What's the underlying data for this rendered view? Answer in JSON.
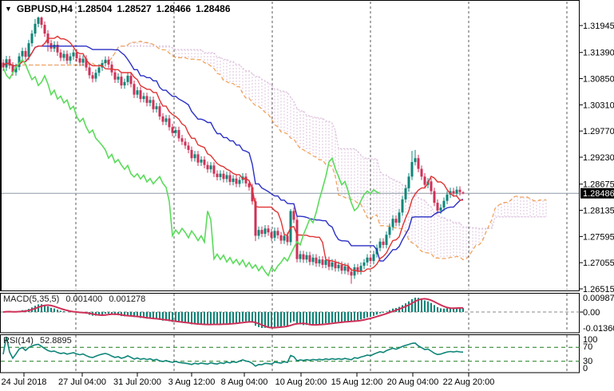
{
  "chart_data": {
    "type": "candlestick",
    "title": {
      "symbol": "GBPUSD,H4",
      "open": "1.28504",
      "high": "1.28527",
      "low": "1.28466",
      "close": "1.28486"
    },
    "price_axis": {
      "ticks": [
        "1.31945",
        "1.31390",
        "1.30850",
        "1.30310",
        "1.29770",
        "1.29230",
        "1.28675",
        "1.28135",
        "1.27595",
        "1.27055",
        "1.26515"
      ],
      "current_price": 1.28486,
      "current_price_label": "1.28486"
    },
    "time_axis": {
      "labels": [
        "24 Jul 2018",
        "27 Jul 04:00",
        "31 Jul 20:00",
        "3 Aug 12:00",
        "8 Aug 04:00",
        "10 Aug 20:00",
        "15 Aug 12:00",
        "20 Aug 04:00",
        "22 Aug 20:00"
      ]
    },
    "candles": [
      [
        1.3118,
        1.3125,
        1.3101,
        1.3108
      ],
      [
        1.3108,
        1.3132,
        1.3101,
        1.3125
      ],
      [
        1.3125,
        1.3132,
        1.3105,
        1.3112
      ],
      [
        1.3112,
        1.3119,
        1.3091,
        1.3098
      ],
      [
        1.3098,
        1.3116,
        1.3091,
        1.3109
      ],
      [
        1.3109,
        1.3138,
        1.3102,
        1.3131
      ],
      [
        1.3131,
        1.3149,
        1.3124,
        1.3142
      ],
      [
        1.3142,
        1.3149,
        1.3123,
        1.313
      ],
      [
        1.313,
        1.3165,
        1.3123,
        1.3158
      ],
      [
        1.3158,
        1.3185,
        1.3151,
        1.3178
      ],
      [
        1.3178,
        1.3208,
        1.3171,
        1.3198
      ],
      [
        1.3198,
        1.3213,
        1.3191,
        1.3211
      ],
      [
        1.3211,
        1.3213,
        1.3189,
        1.3196
      ],
      [
        1.3196,
        1.3203,
        1.3171,
        1.3178
      ],
      [
        1.3178,
        1.3185,
        1.3141,
        1.3158
      ],
      [
        1.3158,
        1.3165,
        1.314,
        1.3147
      ],
      [
        1.3147,
        1.3162,
        1.314,
        1.3155
      ],
      [
        1.3155,
        1.3162,
        1.3132,
        1.3139
      ],
      [
        1.3139,
        1.3146,
        1.3121,
        1.3128
      ],
      [
        1.3128,
        1.3143,
        1.3121,
        1.3136
      ],
      [
        1.3136,
        1.3143,
        1.3115,
        1.3122
      ],
      [
        1.3122,
        1.3138,
        1.3115,
        1.3131
      ],
      [
        1.3131,
        1.3146,
        1.3124,
        1.3139
      ],
      [
        1.3139,
        1.3146,
        1.312,
        1.3127
      ],
      [
        1.3127,
        1.3134,
        1.3111,
        1.3118
      ],
      [
        1.3118,
        1.3133,
        1.3111,
        1.3126
      ],
      [
        1.3126,
        1.3133,
        1.3101,
        1.3108
      ],
      [
        1.3108,
        1.3115,
        1.3085,
        1.3092
      ],
      [
        1.3092,
        1.3099,
        1.3077,
        1.3085
      ],
      [
        1.3085,
        1.3104,
        1.3078,
        1.3097
      ],
      [
        1.3097,
        1.3115,
        1.309,
        1.3108
      ],
      [
        1.3108,
        1.3124,
        1.3101,
        1.3117
      ],
      [
        1.3117,
        1.3131,
        1.311,
        1.3124
      ],
      [
        1.3124,
        1.3131,
        1.3107,
        1.3114
      ],
      [
        1.3114,
        1.3121,
        1.3091,
        1.3098
      ],
      [
        1.3098,
        1.3105,
        1.3076,
        1.3083
      ],
      [
        1.3083,
        1.3096,
        1.3076,
        1.3089
      ],
      [
        1.3089,
        1.3096,
        1.3064,
        1.3071
      ],
      [
        1.3071,
        1.3085,
        1.3064,
        1.3078
      ],
      [
        1.3078,
        1.3098,
        1.3071,
        1.3091
      ],
      [
        1.3091,
        1.3098,
        1.3067,
        1.3074
      ],
      [
        1.3074,
        1.3081,
        1.3045,
        1.3052
      ],
      [
        1.3052,
        1.3068,
        1.3045,
        1.3061
      ],
      [
        1.3061,
        1.3068,
        1.3036,
        1.3043
      ],
      [
        1.3043,
        1.3056,
        1.3036,
        1.3049
      ],
      [
        1.3049,
        1.3056,
        1.3028,
        1.3035
      ],
      [
        1.3035,
        1.3048,
        1.3028,
        1.3041
      ],
      [
        1.3041,
        1.3048,
        1.3015,
        1.3022
      ],
      [
        1.3022,
        1.3035,
        1.3015,
        1.3028
      ],
      [
        1.3028,
        1.3035,
        1.3,
        1.3007
      ],
      [
        1.3007,
        1.3014,
        1.2989,
        1.2996
      ],
      [
        1.2996,
        1.301,
        1.2989,
        1.3003
      ],
      [
        1.3003,
        1.301,
        1.2978,
        1.2985
      ],
      [
        1.2985,
        1.2992,
        1.2966,
        1.2973
      ],
      [
        1.2973,
        1.2986,
        1.2966,
        1.2979
      ],
      [
        1.2979,
        1.2986,
        1.2955,
        1.2962
      ],
      [
        1.2962,
        1.2969,
        1.2948,
        1.2955
      ],
      [
        1.2955,
        1.2962,
        1.294,
        1.2947
      ],
      [
        1.2947,
        1.2954,
        1.2931,
        1.2938
      ],
      [
        1.2938,
        1.2945,
        1.2914,
        1.2921
      ],
      [
        1.2921,
        1.2936,
        1.2914,
        1.2929
      ],
      [
        1.2929,
        1.2936,
        1.2905,
        1.2912
      ],
      [
        1.2912,
        1.2925,
        1.2905,
        1.2918
      ],
      [
        1.2918,
        1.2925,
        1.29,
        1.2907
      ],
      [
        1.2907,
        1.2914,
        1.2891,
        1.2898
      ],
      [
        1.2898,
        1.2913,
        1.2891,
        1.2906
      ],
      [
        1.2906,
        1.2913,
        1.2882,
        1.2889
      ],
      [
        1.2889,
        1.2896,
        1.2875,
        1.2882
      ],
      [
        1.2882,
        1.2896,
        1.2875,
        1.2889
      ],
      [
        1.2889,
        1.2896,
        1.2871,
        1.2878
      ],
      [
        1.2878,
        1.2893,
        1.2871,
        1.2886
      ],
      [
        1.2886,
        1.2893,
        1.2865,
        1.2872
      ],
      [
        1.2872,
        1.2886,
        1.2865,
        1.2879
      ],
      [
        1.2879,
        1.2886,
        1.2861,
        1.2868
      ],
      [
        1.2868,
        1.2883,
        1.2861,
        1.2876
      ],
      [
        1.2876,
        1.289,
        1.2869,
        1.2883
      ],
      [
        1.2883,
        1.289,
        1.2862,
        1.2869
      ],
      [
        1.2869,
        1.2876,
        1.2854,
        1.2861
      ],
      [
        1.2861,
        1.2868,
        1.2825,
        1.2832
      ],
      [
        1.2832,
        1.2839,
        1.275,
        1.2761
      ],
      [
        1.2761,
        1.278,
        1.2754,
        1.2773
      ],
      [
        1.2773,
        1.278,
        1.2758,
        1.2765
      ],
      [
        1.2765,
        1.2783,
        1.2758,
        1.2776
      ],
      [
        1.2776,
        1.2783,
        1.2761,
        1.2768
      ],
      [
        1.2768,
        1.2775,
        1.275,
        1.2757
      ],
      [
        1.2757,
        1.2778,
        1.275,
        1.2771
      ],
      [
        1.2771,
        1.2778,
        1.2755,
        1.2762
      ],
      [
        1.2762,
        1.2769,
        1.2744,
        1.2751
      ],
      [
        1.2751,
        1.2768,
        1.2744,
        1.2761
      ],
      [
        1.2761,
        1.2768,
        1.2741,
        1.2748
      ],
      [
        1.2748,
        1.2816,
        1.2741,
        1.2812
      ],
      [
        1.2812,
        1.2819,
        1.2787,
        1.2794
      ],
      [
        1.2794,
        1.2801,
        1.2706,
        1.2713
      ],
      [
        1.2713,
        1.273,
        1.2706,
        1.2723
      ],
      [
        1.2723,
        1.273,
        1.2705,
        1.2712
      ],
      [
        1.2712,
        1.2728,
        1.2705,
        1.2721
      ],
      [
        1.2721,
        1.2728,
        1.27,
        1.2707
      ],
      [
        1.2707,
        1.2723,
        1.27,
        1.2716
      ],
      [
        1.2716,
        1.2723,
        1.2697,
        1.2704
      ],
      [
        1.2704,
        1.2719,
        1.2697,
        1.2712
      ],
      [
        1.2712,
        1.2719,
        1.2694,
        1.2701
      ],
      [
        1.2701,
        1.2718,
        1.2694,
        1.2711
      ],
      [
        1.2711,
        1.2718,
        1.269,
        1.2697
      ],
      [
        1.2697,
        1.2713,
        1.269,
        1.2706
      ],
      [
        1.2706,
        1.2713,
        1.2687,
        1.2694
      ],
      [
        1.2694,
        1.2708,
        1.2687,
        1.2701
      ],
      [
        1.2701,
        1.2708,
        1.2682,
        1.2689
      ],
      [
        1.2689,
        1.2705,
        1.2682,
        1.2698
      ],
      [
        1.2698,
        1.2705,
        1.268,
        1.2687
      ],
      [
        1.2687,
        1.2694,
        1.2662,
        1.2679
      ],
      [
        1.2679,
        1.2703,
        1.2672,
        1.2696
      ],
      [
        1.2696,
        1.2703,
        1.2681,
        1.2688
      ],
      [
        1.2688,
        1.2706,
        1.2681,
        1.2699
      ],
      [
        1.2699,
        1.2713,
        1.2692,
        1.2706
      ],
      [
        1.2706,
        1.2723,
        1.2699,
        1.2716
      ],
      [
        1.2716,
        1.2723,
        1.2702,
        1.2709
      ],
      [
        1.2709,
        1.273,
        1.2702,
        1.2723
      ],
      [
        1.2723,
        1.2743,
        1.2716,
        1.2736
      ],
      [
        1.2736,
        1.2756,
        1.2729,
        1.2749
      ],
      [
        1.2749,
        1.2756,
        1.2735,
        1.2742
      ],
      [
        1.2742,
        1.277,
        1.2735,
        1.2763
      ],
      [
        1.2763,
        1.2786,
        1.2756,
        1.2779
      ],
      [
        1.2779,
        1.2803,
        1.2772,
        1.2796
      ],
      [
        1.2796,
        1.2803,
        1.2781,
        1.2788
      ],
      [
        1.2788,
        1.2816,
        1.2781,
        1.2809
      ],
      [
        1.2809,
        1.2843,
        1.2802,
        1.2836
      ],
      [
        1.2836,
        1.2866,
        1.2829,
        1.2859
      ],
      [
        1.2859,
        1.289,
        1.2852,
        1.2883
      ],
      [
        1.2883,
        1.2936,
        1.2876,
        1.2913
      ],
      [
        1.2913,
        1.2938,
        1.2906,
        1.2921
      ],
      [
        1.2921,
        1.2928,
        1.2892,
        1.2899
      ],
      [
        1.2899,
        1.2906,
        1.2876,
        1.2883
      ],
      [
        1.2883,
        1.289,
        1.2859,
        1.2866
      ],
      [
        1.2866,
        1.288,
        1.2859,
        1.2873
      ],
      [
        1.2873,
        1.288,
        1.2846,
        1.2853
      ],
      [
        1.2853,
        1.286,
        1.2822,
        1.2829
      ],
      [
        1.2829,
        1.2836,
        1.2806,
        1.2813
      ],
      [
        1.2813,
        1.2826,
        1.2806,
        1.2819
      ],
      [
        1.2819,
        1.284,
        1.2812,
        1.2833
      ],
      [
        1.2833,
        1.2853,
        1.2826,
        1.2846
      ],
      [
        1.2846,
        1.286,
        1.2839,
        1.2853
      ],
      [
        1.2853,
        1.286,
        1.2841,
        1.2848
      ],
      [
        1.2848,
        1.2863,
        1.2841,
        1.2856
      ],
      [
        1.2856,
        1.2863,
        1.2844,
        1.2851
      ],
      [
        1.28504,
        1.28527,
        1.28466,
        1.28486
      ]
    ],
    "overlays": {
      "ichimoku": {
        "tenkan_period": 9,
        "kijun_period": 26,
        "senkou_b_period": 52,
        "shift": 26
      }
    },
    "panes": {
      "macd": {
        "label": "MACD(5,35,5)",
        "value_main": "0.001400",
        "value_signal": "0.001278",
        "axis_max": "0.00987",
        "axis_zero": "0.00",
        "axis_min": "-0.013601",
        "fast": 5,
        "slow": 35,
        "signal": 5
      },
      "rsi": {
        "label": "RSI(14)",
        "value": "52.8895",
        "period": 14,
        "axis_labels": [
          "100",
          "70",
          "30",
          "0"
        ],
        "levels": [
          70,
          30
        ]
      }
    },
    "colors": {
      "bull": "#0e8578",
      "bear": "#ce3158",
      "tenkan": "#e03333",
      "kijun": "#2a2fc4",
      "chikou": "#5bdb5b",
      "senkou_a": "#efa55e",
      "senkou_b": "#ddc1de",
      "cloud_hatch": "#ddc1de",
      "macd_hist": "#0e8578",
      "macd_signal": "#ce3158",
      "macd_zero": "#8a8a8a",
      "rsi_line": "#0e8578",
      "rsi_levels": "#1c7c1c",
      "grid": "#3c3c3c",
      "price_line": "#8e99a5",
      "price_box_bg": "#000000",
      "price_box_text": "#ffffff",
      "background": "#ffffff",
      "text": "#000000"
    }
  }
}
